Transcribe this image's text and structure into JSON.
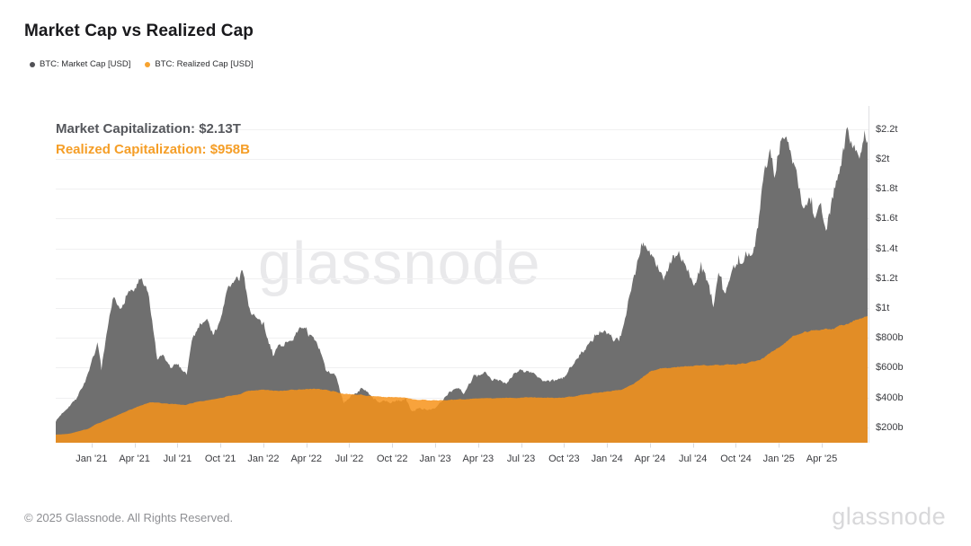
{
  "header": {
    "title": "Market Cap vs Realized Cap"
  },
  "legend": {
    "items": [
      {
        "label": "BTC: Market Cap [USD]",
        "color": "#515156"
      },
      {
        "label": "BTC: Realized Cap [USD]",
        "color": "#f7a330"
      }
    ]
  },
  "annotation": {
    "market_cap": "Market Capitalization: $2.13T",
    "realized_cap": "Realized Capitalization: $958B"
  },
  "watermark": "glassnode",
  "footer": {
    "copyright": "© 2025 Glassnode. All Rights Reserved.",
    "logo": "glassnode"
  },
  "colors": {
    "market_cap_area": "#6f6f6f",
    "realized_cap_area": "#f7931a",
    "realized_cap_opacity": 0.85,
    "gridline": "#f0f0f1",
    "axis_line": "#dfdfe2",
    "tick_mark": "#d9d9dc"
  },
  "chart_data": {
    "type": "area",
    "title": "Market Cap vs Realized Cap",
    "unit": "USD billions",
    "grid": "horizontal",
    "legend_position": "top-left",
    "x_axis_note": "x = months from left edge of plot (mid-Oct 2020) to right edge (~Jul 2025); quarterly tick labels",
    "x_tick_labels": [
      "Jan '21",
      "Apr '21",
      "Jul '21",
      "Oct '21",
      "Jan '22",
      "Apr '22",
      "Jul '22",
      "Oct '22",
      "Jan '23",
      "Apr '23",
      "Jul '23",
      "Oct '23",
      "Jan '24",
      "Apr '24",
      "Jul '24",
      "Oct '24",
      "Jan '25",
      "Apr '25"
    ],
    "x_tick_month_offsets": [
      2.5,
      5.5,
      8.5,
      11.5,
      14.5,
      17.5,
      20.5,
      23.5,
      26.5,
      29.5,
      32.5,
      35.5,
      38.5,
      41.5,
      44.5,
      47.5,
      50.5,
      53.5
    ],
    "x_range_months": [
      0,
      56.7
    ],
    "ylim_billions": [
      96,
      2355
    ],
    "y_ticks": [
      {
        "v": 2200,
        "label": "$2.2t"
      },
      {
        "v": 2000,
        "label": "$2t"
      },
      {
        "v": 1800,
        "label": "$1.8t"
      },
      {
        "v": 1600,
        "label": "$1.6t"
      },
      {
        "v": 1400,
        "label": "$1.4t"
      },
      {
        "v": 1200,
        "label": "$1.2t"
      },
      {
        "v": 1000,
        "label": "$1t"
      },
      {
        "v": 800,
        "label": "$800b"
      },
      {
        "v": 600,
        "label": "$600b"
      },
      {
        "v": 400,
        "label": "$400b"
      },
      {
        "v": 200,
        "label": "$200b"
      }
    ],
    "series": [
      {
        "name": "BTC: Market Cap [USD]",
        "style": "area",
        "color": "#6f6f6f",
        "latest_label": "$2.13T",
        "points": [
          [
            0,
            240
          ],
          [
            0.5,
            300
          ],
          [
            1.5,
            400
          ],
          [
            2.3,
            560
          ],
          [
            2.9,
            760
          ],
          [
            3.2,
            600
          ],
          [
            4,
            1060
          ],
          [
            4.5,
            980
          ],
          [
            5,
            1110
          ],
          [
            5.5,
            1120
          ],
          [
            5.9,
            1190
          ],
          [
            6.5,
            1080
          ],
          [
            7.1,
            640
          ],
          [
            7.5,
            680
          ],
          [
            8,
            600
          ],
          [
            8.5,
            620
          ],
          [
            9.15,
            560
          ],
          [
            9.5,
            780
          ],
          [
            10,
            880
          ],
          [
            10.5,
            940
          ],
          [
            11,
            830
          ],
          [
            11.5,
            900
          ],
          [
            12,
            1150
          ],
          [
            12.8,
            1190
          ],
          [
            13.1,
            1250
          ],
          [
            13.5,
            1000
          ],
          [
            14,
            930
          ],
          [
            14.5,
            880
          ],
          [
            15.2,
            680
          ],
          [
            15.5,
            740
          ],
          [
            16.5,
            790
          ],
          [
            17.3,
            880
          ],
          [
            17.5,
            860
          ],
          [
            18.3,
            740
          ],
          [
            18.5,
            700
          ],
          [
            18.9,
            570
          ],
          [
            19.5,
            560
          ],
          [
            20.1,
            360
          ],
          [
            20.5,
            400
          ],
          [
            21.3,
            455
          ],
          [
            21.5,
            460
          ],
          [
            22.2,
            390
          ],
          [
            22.5,
            370
          ],
          [
            23.5,
            370
          ],
          [
            24.5,
            390
          ],
          [
            24.8,
            310
          ],
          [
            25.5,
            325
          ],
          [
            26.5,
            320
          ],
          [
            27.2,
            400
          ],
          [
            27.5,
            440
          ],
          [
            28.1,
            470
          ],
          [
            28.5,
            430
          ],
          [
            29.2,
            540
          ],
          [
            29.5,
            540
          ],
          [
            30,
            560
          ],
          [
            30.5,
            520
          ],
          [
            31.5,
            500
          ],
          [
            32,
            560
          ],
          [
            32.5,
            580
          ],
          [
            33.5,
            560
          ],
          [
            34,
            510
          ],
          [
            34.5,
            500
          ],
          [
            35.5,
            530
          ],
          [
            36.3,
            660
          ],
          [
            36.5,
            680
          ],
          [
            37.5,
            780
          ],
          [
            38,
            840
          ],
          [
            38.5,
            830
          ],
          [
            39,
            780
          ],
          [
            39.5,
            830
          ],
          [
            40.3,
            1180
          ],
          [
            40.5,
            1250
          ],
          [
            40.9,
            1440
          ],
          [
            41.5,
            1380
          ],
          [
            42.2,
            1250
          ],
          [
            42.5,
            1190
          ],
          [
            43.1,
            1350
          ],
          [
            43.5,
            1370
          ],
          [
            44.2,
            1240
          ],
          [
            44.6,
            1130
          ],
          [
            45.1,
            1290
          ],
          [
            45.6,
            1150
          ],
          [
            45.9,
            1000
          ],
          [
            46.3,
            1250
          ],
          [
            46.7,
            1080
          ],
          [
            47.3,
            1270
          ],
          [
            47.9,
            1330
          ],
          [
            48.4,
            1380
          ],
          [
            48.7,
            1340
          ],
          [
            49.1,
            1600
          ],
          [
            49.5,
            1950
          ],
          [
            49.9,
            2050
          ],
          [
            50.2,
            1900
          ],
          [
            50.6,
            2100
          ],
          [
            51,
            2150
          ],
          [
            51.4,
            2020
          ],
          [
            51.7,
            1900
          ],
          [
            52.2,
            1680
          ],
          [
            52.6,
            1730
          ],
          [
            53,
            1610
          ],
          [
            53.4,
            1680
          ],
          [
            53.8,
            1530
          ],
          [
            54.2,
            1700
          ],
          [
            54.6,
            1900
          ],
          [
            55,
            2060
          ],
          [
            55.35,
            2200
          ],
          [
            55.6,
            2120
          ],
          [
            55.9,
            2070
          ],
          [
            56.2,
            2040
          ],
          [
            56.5,
            2190
          ],
          [
            56.7,
            2130
          ]
        ]
      },
      {
        "name": "BTC: Realized Cap [USD]",
        "style": "area",
        "color": "#f7931a",
        "latest_label": "$958B",
        "points": [
          [
            0,
            150
          ],
          [
            1,
            158
          ],
          [
            1.5,
            170
          ],
          [
            2.3,
            190
          ],
          [
            2.9,
            225
          ],
          [
            3.2,
            235
          ],
          [
            4,
            265
          ],
          [
            4.5,
            290
          ],
          [
            5,
            310
          ],
          [
            5.5,
            330
          ],
          [
            5.9,
            345
          ],
          [
            6.5,
            365
          ],
          [
            7.1,
            368
          ],
          [
            7.5,
            362
          ],
          [
            8,
            358
          ],
          [
            8.5,
            355
          ],
          [
            9.15,
            352
          ],
          [
            9.5,
            362
          ],
          [
            10,
            372
          ],
          [
            10.5,
            382
          ],
          [
            11,
            388
          ],
          [
            11.5,
            395
          ],
          [
            12,
            408
          ],
          [
            12.8,
            420
          ],
          [
            13.1,
            432
          ],
          [
            13.5,
            442
          ],
          [
            14,
            448
          ],
          [
            14.5,
            450
          ],
          [
            15.2,
            448
          ],
          [
            15.5,
            447
          ],
          [
            16.5,
            450
          ],
          [
            17.3,
            455
          ],
          [
            17.5,
            456
          ],
          [
            18.3,
            455
          ],
          [
            18.5,
            452
          ],
          [
            18.9,
            448
          ],
          [
            19.5,
            440
          ],
          [
            20.1,
            425
          ],
          [
            20.5,
            420
          ],
          [
            21.3,
            418
          ],
          [
            21.5,
            415
          ],
          [
            22.2,
            410
          ],
          [
            22.5,
            407
          ],
          [
            23.5,
            402
          ],
          [
            24.5,
            398
          ],
          [
            24.8,
            390
          ],
          [
            25.5,
            385
          ],
          [
            26.5,
            381
          ],
          [
            27.2,
            381
          ],
          [
            27.5,
            384
          ],
          [
            28.1,
            387
          ],
          [
            28.5,
            388
          ],
          [
            29.2,
            392
          ],
          [
            29.5,
            394
          ],
          [
            30,
            396
          ],
          [
            30.5,
            396
          ],
          [
            31.5,
            396
          ],
          [
            32,
            398
          ],
          [
            32.5,
            400
          ],
          [
            33.5,
            400
          ],
          [
            34,
            398
          ],
          [
            34.5,
            397
          ],
          [
            35.5,
            400
          ],
          [
            36.3,
            408
          ],
          [
            36.5,
            412
          ],
          [
            37.5,
            425
          ],
          [
            38,
            432
          ],
          [
            38.5,
            440
          ],
          [
            39,
            445
          ],
          [
            39.5,
            452
          ],
          [
            40.3,
            485
          ],
          [
            40.9,
            530
          ],
          [
            41.5,
            575
          ],
          [
            42.2,
            590
          ],
          [
            42.5,
            595
          ],
          [
            43.1,
            602
          ],
          [
            43.5,
            606
          ],
          [
            44.5,
            612
          ],
          [
            45,
            615
          ],
          [
            45.5,
            617
          ],
          [
            46,
            618
          ],
          [
            46.3,
            618
          ],
          [
            46.8,
            620
          ],
          [
            47.2,
            622
          ],
          [
            47.8,
            625
          ],
          [
            48.5,
            633
          ],
          [
            49,
            642
          ],
          [
            49.3,
            658
          ],
          [
            49.8,
            692
          ],
          [
            50.2,
            718
          ],
          [
            50.5,
            738
          ],
          [
            50.8,
            762
          ],
          [
            51.2,
            792
          ],
          [
            51.5,
            815
          ],
          [
            51.8,
            828
          ],
          [
            52.2,
            840
          ],
          [
            52.6,
            846
          ],
          [
            53,
            849
          ],
          [
            53.4,
            853
          ],
          [
            53.8,
            856
          ],
          [
            54.2,
            861
          ],
          [
            54.6,
            873
          ],
          [
            55,
            886
          ],
          [
            55.35,
            901
          ],
          [
            55.6,
            913
          ],
          [
            55.9,
            923
          ],
          [
            56.2,
            933
          ],
          [
            56.5,
            946
          ],
          [
            56.7,
            958
          ]
        ]
      }
    ]
  }
}
